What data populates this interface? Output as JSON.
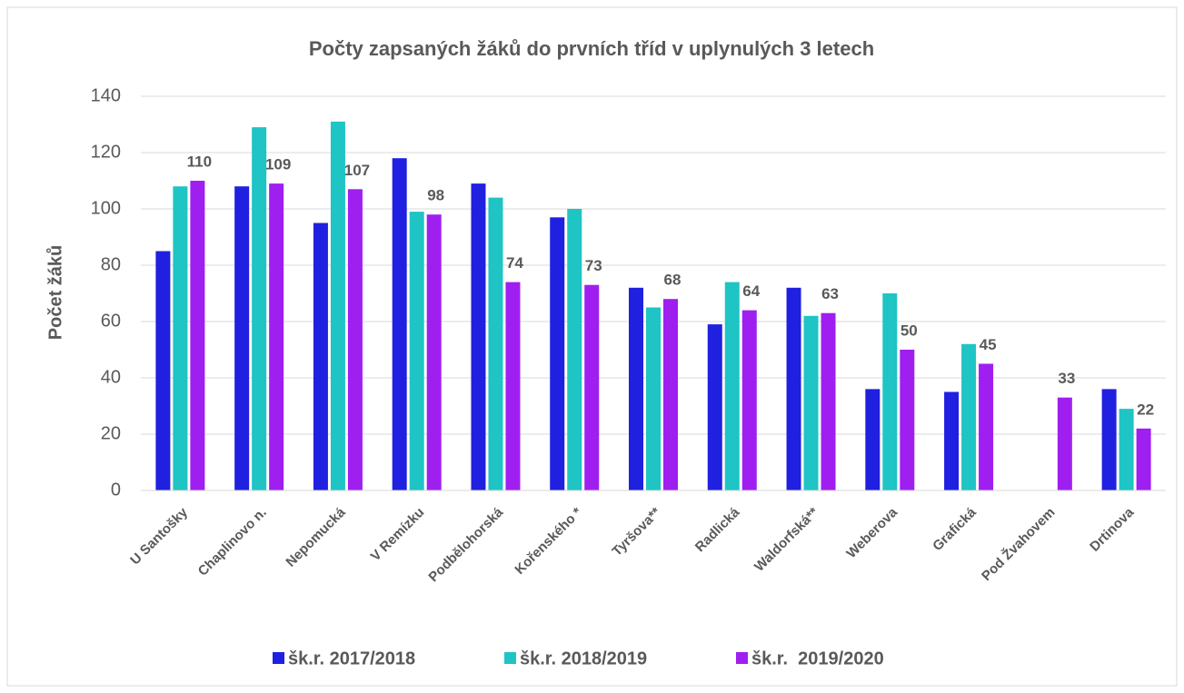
{
  "chart_data": {
    "type": "bar",
    "title": "Počty zapsaných žáků do prvních tříd v uplynulých 3 letech",
    "y_label": "Počet žáků",
    "categories": [
      "U Santošky",
      "Chaplinovo n.",
      "Nepomucká",
      "V Remízku",
      "Podbělohorská",
      "Kořenského *",
      "Tyršova**",
      "Radlická",
      "Waldorfská**",
      "Weberova",
      "Grafická",
      "Pod Žvahovem",
      "Drtinova"
    ],
    "series": [
      {
        "name": "šk.r. 2017/2018",
        "color": "#2020e0",
        "values": [
          85,
          108,
          95,
          118,
          109,
          97,
          72,
          59,
          72,
          36,
          35,
          null,
          36
        ]
      },
      {
        "name": "šk.r. 2018/2019",
        "color": "#1fc4c4",
        "values": [
          108,
          129,
          131,
          99,
          104,
          100,
          65,
          74,
          62,
          70,
          52,
          null,
          29
        ]
      },
      {
        "name": "šk.r.  2019/2020",
        "color": "#9f1ff0",
        "values": [
          110,
          109,
          107,
          98,
          74,
          73,
          68,
          64,
          63,
          50,
          45,
          33,
          22
        ],
        "data_labels": true
      }
    ],
    "ylim": [
      0,
      140
    ],
    "yticks": [
      0,
      20,
      40,
      60,
      80,
      100,
      120,
      140
    ],
    "grid": true,
    "legend": "bottom"
  }
}
